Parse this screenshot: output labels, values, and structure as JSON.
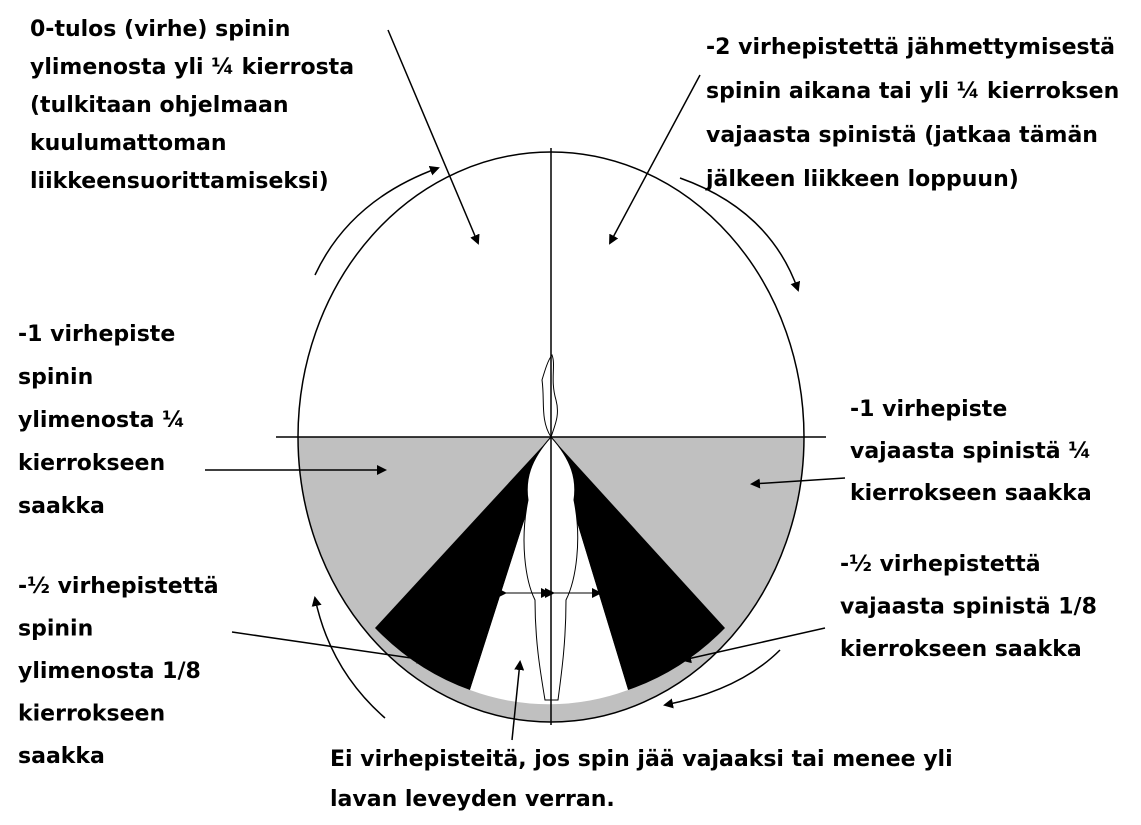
{
  "annotations": [
    {
      "lines": [
        "0-tulos (virhe) spinin",
        "ylimenosta yli ¼ kierrosta",
        "(tulkitaan ohjelmaan",
        "kuulumattoman",
        "liikkeensuorittamiseksi)"
      ]
    },
    {
      "lines": [
        "-2 virhepistettä jähmettymisestä",
        "spinin aikana tai yli ¼ kierroksen",
        "vajaasta spinistä (jatkaa tämän",
        "jälkeen liikkeen loppuun)"
      ]
    },
    {
      "lines": [
        "-1 virhepiste",
        "spinin",
        "ylimenosta ¼",
        "kierrokseen",
        "saakka"
      ]
    },
    {
      "lines": [
        "-1 virhepiste",
        "vajaasta spinistä ¼",
        "kierrokseen saakka"
      ]
    },
    {
      "lines": [
        "-½ virhepistettä",
        "spinin",
        "ylimenosta 1/8",
        "kierrokseen",
        "saakka"
      ]
    },
    {
      "lines": [
        "-½ virhepistettä",
        "vajaasta spinistä 1/8",
        "kierrokseen saakka"
      ]
    },
    {
      "lines": [
        "Ei virhepisteitä, jos spin jää vajaaksi tai menee yli",
        "lavan leveyden verran."
      ]
    }
  ]
}
